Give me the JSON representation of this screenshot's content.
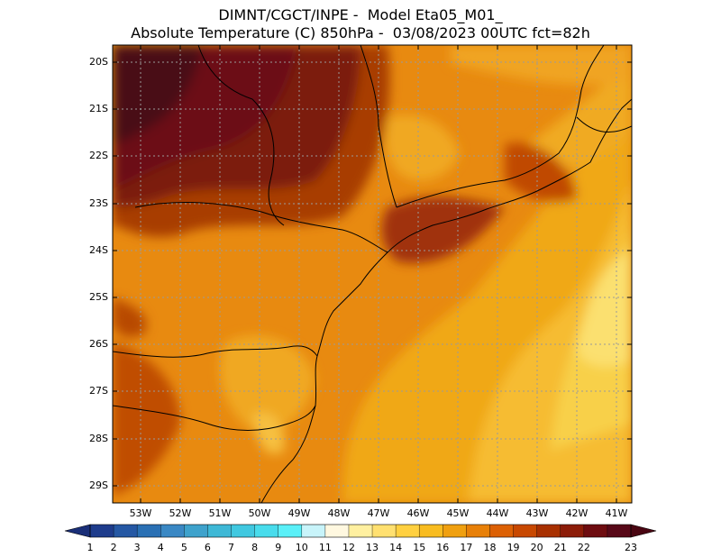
{
  "header": {
    "line1": "DIMNT/CGCT/INPE -  Model Eta05_M01_",
    "line2": "Absolute Temperature (C) 850hPa -  03/08/2023 00UTC fct=82h"
  },
  "map": {
    "lat_labels": [
      "20S",
      "21S",
      "22S",
      "23S",
      "24S",
      "25S",
      "26S",
      "27S",
      "28S",
      "29S"
    ],
    "lon_labels": [
      "53W",
      "52W",
      "51W",
      "50W",
      "49W",
      "48W",
      "47W",
      "46W",
      "45W",
      "44W",
      "43W",
      "42W",
      "41W"
    ]
  },
  "colorbar": {
    "labels": [
      "1",
      "2",
      "3",
      "4",
      "5",
      "6",
      "7",
      "8",
      "9",
      "10",
      "11",
      "12",
      "13",
      "14",
      "15",
      "16",
      "17",
      "18",
      "19",
      "20",
      "21",
      "22",
      "23"
    ],
    "colors": [
      "#1e3c8c",
      "#2558a4",
      "#2a70b4",
      "#3a88c4",
      "#3ea2cc",
      "#3eb8d6",
      "#40c8e0",
      "#48dcec",
      "#5af0f8",
      "#c8f4fa",
      "#fff8e0",
      "#fff0a0",
      "#ffe070",
      "#ffd040",
      "#f8bc20",
      "#f0a010",
      "#e88008",
      "#dc6004",
      "#c84800",
      "#a83000",
      "#8c1c08",
      "#6e0c10",
      "#580818"
    ]
  }
}
